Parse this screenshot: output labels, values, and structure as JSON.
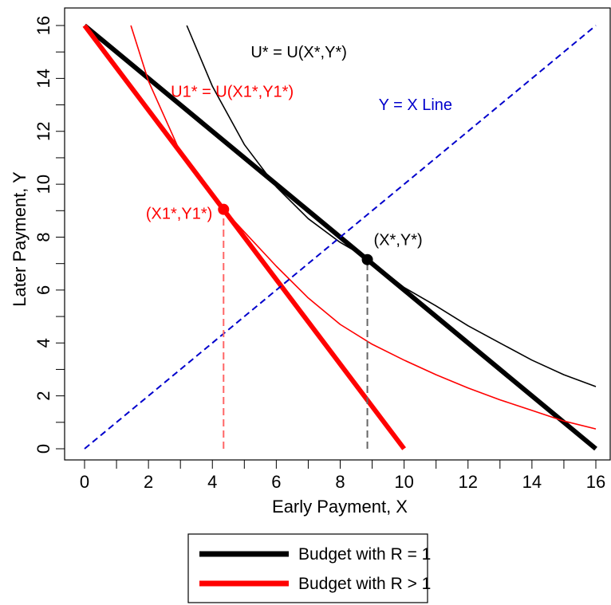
{
  "chart_data": {
    "type": "line",
    "xlabel": "Early Payment, X",
    "ylabel": "Later Payment, Y",
    "xlim": [
      0,
      16
    ],
    "ylim": [
      0,
      16
    ],
    "xticks": [
      0,
      2,
      4,
      6,
      8,
      10,
      12,
      14,
      16
    ],
    "yticks": [
      0,
      2,
      4,
      6,
      8,
      10,
      12,
      14,
      16
    ],
    "grid": false,
    "legend_position": "bottom",
    "series": [
      {
        "name": "Budget with R = 1",
        "color": "#000000",
        "style": "solid-thick",
        "x": [
          0,
          16
        ],
        "y": [
          16,
          0
        ]
      },
      {
        "name": "Budget with R > 1",
        "color": "#ff0000",
        "style": "solid-thick",
        "x": [
          0,
          10
        ],
        "y": [
          16,
          0
        ]
      },
      {
        "color": "#000000",
        "style": "solid-thin",
        "x": [
          3.2,
          4,
          5,
          6,
          7,
          8,
          8.85,
          10,
          11,
          12,
          13,
          14,
          15,
          16
        ],
        "y": [
          16.0,
          13.7,
          11.5,
          9.9,
          8.7,
          7.8,
          7.2,
          6.1,
          5.4,
          4.65,
          4.0,
          3.35,
          2.8,
          2.35
        ]
      },
      {
        "color": "#ff0000",
        "style": "solid-thin",
        "x": [
          1.45,
          2,
          3,
          4,
          4.35,
          5,
          6,
          7,
          8,
          9,
          10,
          11,
          12,
          13,
          14,
          15,
          16
        ],
        "y": [
          16.0,
          13.9,
          11.2,
          9.5,
          9.05,
          8.2,
          6.9,
          5.7,
          4.7,
          3.95,
          3.35,
          2.8,
          2.3,
          1.85,
          1.45,
          1.05,
          0.75
        ]
      },
      {
        "name": "Y = X Line",
        "color": "#0000cc",
        "style": "dashed",
        "x": [
          0,
          16
        ],
        "y": [
          0,
          16
        ]
      }
    ],
    "points": [
      {
        "label": "(X*,Y*)",
        "x": 8.85,
        "y": 7.15,
        "color": "#000000"
      },
      {
        "label": "(X1*,Y1*)",
        "x": 4.35,
        "y": 9.05,
        "color": "#ff0000"
      }
    ],
    "guides": [
      {
        "x": 8.85,
        "y_from": 0,
        "y_to": 7.15,
        "color": "#666666"
      },
      {
        "x": 4.35,
        "y_from": 0,
        "y_to": 9.05,
        "color": "#ff6666"
      }
    ],
    "annotations": [
      {
        "text": "U* = U(X*,Y*)",
        "x": 5.2,
        "y": 14.8,
        "color": "#000000"
      },
      {
        "text": "U1* = U(X1*,Y1*)",
        "x": 2.7,
        "y": 13.3,
        "color": "#ff0000"
      },
      {
        "text": "Y = X Line",
        "x": 9.2,
        "y": 12.8,
        "color": "#0000cc"
      }
    ]
  }
}
